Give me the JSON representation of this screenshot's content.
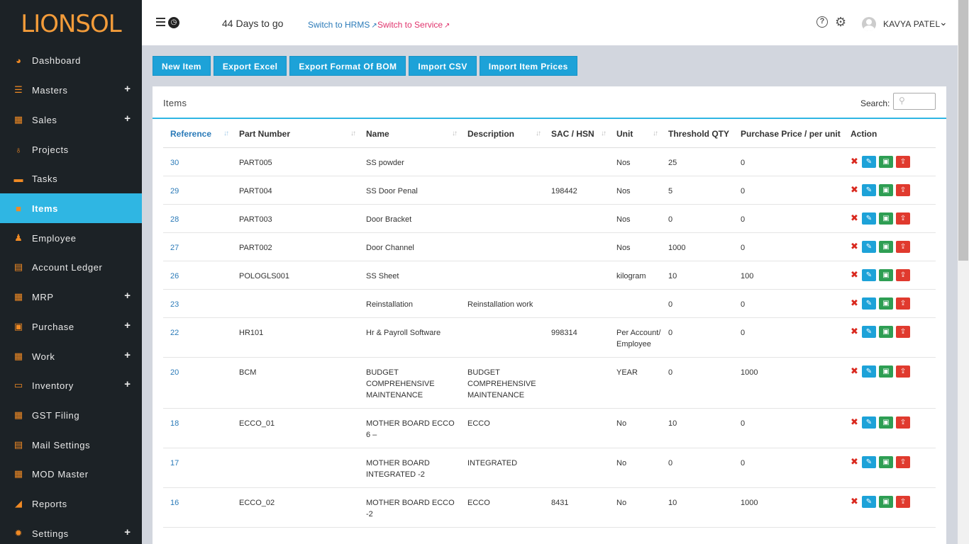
{
  "brand": {
    "logo_text": "LIONSOL"
  },
  "sidebar": {
    "items": [
      {
        "label": "Dashboard",
        "icon": "dashboard-icon",
        "glyph": "◕",
        "plus": false,
        "active": false
      },
      {
        "label": "Masters",
        "icon": "database-icon",
        "glyph": "☰",
        "plus": true,
        "active": false
      },
      {
        "label": "Sales",
        "icon": "chart-icon",
        "glyph": "▦",
        "plus": true,
        "active": false
      },
      {
        "label": "Projects",
        "icon": "lightbulb-icon",
        "glyph": "♁",
        "plus": false,
        "active": false
      },
      {
        "label": "Tasks",
        "icon": "tasks-icon",
        "glyph": "▬",
        "plus": false,
        "active": false
      },
      {
        "label": "Items",
        "icon": "items-icon",
        "glyph": "■",
        "plus": false,
        "active": true
      },
      {
        "label": "Employee",
        "icon": "user-icon",
        "glyph": "♟",
        "plus": false,
        "active": false
      },
      {
        "label": "Account Ledger",
        "icon": "ledger-icon",
        "glyph": "▤",
        "plus": false,
        "active": false
      },
      {
        "label": "MRP",
        "icon": "grid-icon",
        "glyph": "▦",
        "plus": true,
        "active": false
      },
      {
        "label": "Purchase",
        "icon": "briefcase-icon",
        "glyph": "▣",
        "plus": true,
        "active": false
      },
      {
        "label": "Work",
        "icon": "grid-icon",
        "glyph": "▦",
        "plus": true,
        "active": false
      },
      {
        "label": "Inventory",
        "icon": "archive-icon",
        "glyph": "▭",
        "plus": true,
        "active": false
      },
      {
        "label": "GST Filing",
        "icon": "calendar-icon",
        "glyph": "▦",
        "plus": false,
        "active": false
      },
      {
        "label": "Mail Settings",
        "icon": "document-icon",
        "glyph": "▤",
        "plus": false,
        "active": false
      },
      {
        "label": "MOD Master",
        "icon": "grid-icon",
        "glyph": "▦",
        "plus": false,
        "active": false
      },
      {
        "label": "Reports",
        "icon": "area-chart-icon",
        "glyph": "◢",
        "plus": false,
        "active": false
      },
      {
        "label": "Settings",
        "icon": "cog-icon",
        "glyph": "✹",
        "plus": true,
        "active": false
      }
    ]
  },
  "topbar": {
    "days_to_go": "44 Days to go",
    "switch_hrms": "Switch to HRMS",
    "switch_service": "Switch to Service",
    "user_name": "KAVYA PATEL"
  },
  "toolbar": {
    "new_item": "New Item",
    "export_excel": "Export Excel",
    "export_bom": "Export Format Of BOM",
    "import_csv": "Import CSV",
    "import_prices": "Import Item Prices"
  },
  "panel": {
    "title": "Items",
    "search_label": "Search:"
  },
  "table": {
    "columns": [
      "Reference",
      "Part Number",
      "Name",
      "Description",
      "SAC / HSN",
      "Unit",
      "Threshold QTY",
      "Purchase Price / per unit",
      "Action"
    ],
    "rows": [
      {
        "ref": "30",
        "part": "PART005",
        "name": "SS powder",
        "desc": "",
        "sac": "",
        "unit": "Nos",
        "qty": "25",
        "price": "0"
      },
      {
        "ref": "29",
        "part": "PART004",
        "name": "SS Door Penal",
        "desc": "",
        "sac": "198442",
        "unit": "Nos",
        "qty": "5",
        "price": "0"
      },
      {
        "ref": "28",
        "part": "PART003",
        "name": "Door Bracket",
        "desc": "",
        "sac": "",
        "unit": "Nos",
        "qty": "0",
        "price": "0"
      },
      {
        "ref": "27",
        "part": "PART002",
        "name": "Door Channel",
        "desc": "",
        "sac": "",
        "unit": "Nos",
        "qty": "1000",
        "price": "0"
      },
      {
        "ref": "26",
        "part": "POLOGLS001",
        "name": "SS Sheet",
        "desc": "",
        "sac": "",
        "unit": "kilogram",
        "qty": "10",
        "price": "100"
      },
      {
        "ref": "23",
        "part": "",
        "name": "Reinstallation",
        "desc": "Reinstallation work",
        "sac": "",
        "unit": "",
        "qty": "0",
        "price": "0"
      },
      {
        "ref": "22",
        "part": "HR101",
        "name": "Hr & Payroll Software",
        "desc": "",
        "sac": "998314",
        "unit": "Per Account/ Employee",
        "qty": "0",
        "price": "0"
      },
      {
        "ref": "20",
        "part": "BCM",
        "name": "BUDGET COMPREHENSIVE MAINTENANCE",
        "desc": "BUDGET COMPREHENSIVE MAINTENANCE",
        "sac": "",
        "unit": "YEAR",
        "qty": "0",
        "price": "1000"
      },
      {
        "ref": "18",
        "part": "ECCO_01",
        "name": "MOTHER BOARD ECCO 6 –",
        "desc": "ECCO",
        "sac": "",
        "unit": "No",
        "qty": "10",
        "price": "0"
      },
      {
        "ref": "17",
        "part": "",
        "name": "MOTHER BOARD INTEGRATED -2",
        "desc": "INTEGRATED",
        "sac": "",
        "unit": "No",
        "qty": "0",
        "price": "0"
      },
      {
        "ref": "16",
        "part": "ECCO_02",
        "name": "MOTHER BOARD ECCO -2",
        "desc": "ECCO",
        "sac": "8431",
        "unit": "No",
        "qty": "10",
        "price": "1000"
      }
    ]
  }
}
